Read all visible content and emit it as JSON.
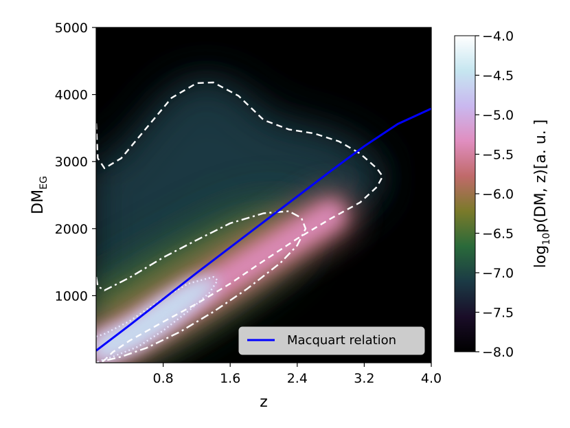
{
  "chart_data": {
    "type": "heatmap",
    "title": "",
    "xlabel": "z",
    "ylabel": "DM",
    "ylabel_sub": "EG",
    "xlim": [
      0.0,
      4.0
    ],
    "ylim": [
      0,
      5000
    ],
    "xticks": [
      0.8,
      1.6,
      2.4,
      3.2,
      4.0
    ],
    "xtick_labels": [
      "0.8",
      "1.6",
      "2.4",
      "3.2",
      "4.0"
    ],
    "yticks": [
      1000,
      2000,
      3000,
      4000,
      5000
    ],
    "ytick_labels": [
      "1000",
      "2000",
      "3000",
      "4000",
      "5000"
    ],
    "colorbar": {
      "label_prefix": "log",
      "label_sub": "10",
      "label_rest": "p(DM, z)[a. u. ]",
      "range": [
        -8.0,
        -4.0
      ],
      "ticks": [
        -8.0,
        -7.5,
        -7.0,
        -6.5,
        -6.0,
        -5.5,
        -5.0,
        -4.5,
        -4.0
      ],
      "tick_labels": [
        "−8.0",
        "−7.5",
        "−7.0",
        "−6.5",
        "−6.0",
        "−5.5",
        "−5.0",
        "−4.5",
        "−4.0"
      ],
      "colormap": "cubehelix",
      "colors": [
        "#000000",
        "#1a0d28",
        "#1b3a45",
        "#2a6a3a",
        "#7a7a2a",
        "#c06a6a",
        "#e08ec0",
        "#c9b8ef",
        "#c6e6f0",
        "#ffffff"
      ]
    },
    "legend": {
      "entries": [
        "Macquart relation"
      ],
      "placement": "lower-right",
      "line_color": "#0000ff"
    },
    "series": [
      {
        "name": "Macquart relation",
        "style": "solid",
        "color": "#0000ff",
        "x": [
          0.0,
          0.4,
          0.8,
          1.2,
          1.6,
          2.0,
          2.4,
          2.8,
          3.2,
          3.6,
          4.0
        ],
        "y": [
          180,
          560,
          950,
          1340,
          1720,
          2100,
          2480,
          2860,
          3230,
          3560,
          3790
        ]
      }
    ],
    "contours": [
      {
        "level": "outer",
        "style": "dashed",
        "color": "#ffffff",
        "x": [
          0.0,
          0.02,
          0.1,
          0.3,
          0.6,
          0.9,
          1.2,
          1.4,
          1.7,
          2.0,
          2.3,
          2.6,
          2.9,
          3.15,
          3.35,
          3.42,
          3.35,
          3.15,
          2.8,
          2.4,
          2.0,
          1.6,
          1.2,
          0.8,
          0.4,
          0.2,
          0.1,
          0.0
        ],
        "y": [
          3570,
          3050,
          2900,
          3050,
          3500,
          3950,
          4170,
          4180,
          3980,
          3620,
          3480,
          3420,
          3300,
          3120,
          2900,
          2780,
          2620,
          2390,
          2150,
          1850,
          1520,
          1180,
          880,
          610,
          330,
          160,
          40,
          0
        ]
      },
      {
        "level": "middle",
        "style": "dashdot",
        "color": "#ffffff",
        "x": [
          0.0,
          0.02,
          0.1,
          0.4,
          0.8,
          1.2,
          1.6,
          2.0,
          2.3,
          2.45,
          2.5,
          2.4,
          2.2,
          1.8,
          1.4,
          1.0,
          0.6,
          0.3,
          0.1,
          0.0
        ],
        "y": [
          1280,
          1140,
          1080,
          1270,
          1570,
          1830,
          2080,
          2230,
          2260,
          2160,
          2000,
          1750,
          1490,
          1100,
          760,
          460,
          220,
          90,
          30,
          0
        ]
      },
      {
        "level": "inner",
        "style": "dotted",
        "color": "#e8e8ff",
        "x": [
          0.0,
          0.1,
          0.4,
          0.8,
          1.1,
          1.4,
          1.45,
          1.35,
          1.1,
          0.8,
          0.5,
          0.2,
          0.05,
          0.0
        ],
        "y": [
          390,
          430,
          620,
          960,
          1180,
          1280,
          1230,
          1040,
          770,
          480,
          240,
          90,
          30,
          0
        ]
      }
    ],
    "ridge": {
      "x": [
        0.05,
        0.4,
        0.8,
        1.2,
        1.6,
        2.0,
        2.4,
        2.8
      ],
      "y": [
        200,
        400,
        700,
        1000,
        1300,
        1600,
        1900,
        2200
      ]
    },
    "grid": false
  }
}
